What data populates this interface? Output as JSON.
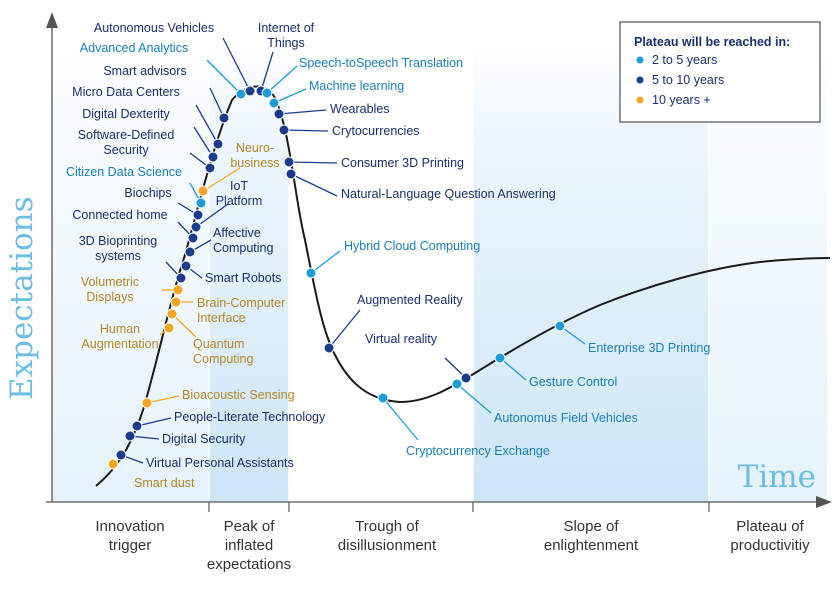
{
  "chart_data": {
    "type": "scatter",
    "title": "",
    "xlabel": "Time",
    "ylabel": "Expectations",
    "colors": {
      "2 to 5 years": "#1e9cd7",
      "5 to 10 years": "#1a3c8c",
      "10 years +": "#f5a623",
      "curve": "#1a1a1a",
      "axis_title": "#6bbde3"
    },
    "phases": [
      {
        "name": "Innovation trigger",
        "lines": [
          "Innovation",
          "trigger"
        ]
      },
      {
        "name": "Peak of inflated expectations",
        "lines": [
          "Peak of",
          "inflated",
          "expectations"
        ]
      },
      {
        "name": "Trough of disillusionment",
        "lines": [
          "Trough of",
          "disillusionment"
        ]
      },
      {
        "name": "Slope of enlightenment",
        "lines": [
          "Slope of",
          "enlightenment"
        ]
      },
      {
        "name": "Plateau of productivitiy",
        "lines": [
          "Plateau of",
          "productivitiy"
        ]
      }
    ],
    "legend": {
      "title": "Plateau will be reached in:",
      "position": "top-right",
      "entries": [
        {
          "label": "2 to 5 years",
          "category": "2 to 5 years"
        },
        {
          "label": "5 to 10 years",
          "category": "5 to 10 years"
        },
        {
          "label": "10 years +",
          "category": "10 years +"
        }
      ]
    },
    "points": [
      {
        "label": "Smart dust",
        "lines": [
          "Smart dust"
        ],
        "category": "10 years +"
      },
      {
        "label": "Virtual Personal Assistants",
        "lines": [
          "Virtual Personal Assistants"
        ],
        "category": "5 to 10 years"
      },
      {
        "label": "Digital Security",
        "lines": [
          "Digital Security"
        ],
        "category": "5 to 10 years"
      },
      {
        "label": "People-Literate Technology",
        "lines": [
          "People-Literate Technology"
        ],
        "category": "5 to 10 years"
      },
      {
        "label": "Bioacoustic Sensing",
        "lines": [
          "Bioacoustic Sensing"
        ],
        "category": "10 years +"
      },
      {
        "label": "Human Augmentation",
        "lines": [
          "Human",
          "Augmentation"
        ],
        "category": "10 years +"
      },
      {
        "label": "Quantum Computing",
        "lines": [
          "Quantum",
          "Computing"
        ],
        "category": "10 years +"
      },
      {
        "label": "Brain-Computer Interface",
        "lines": [
          "Brain-Computer",
          "Interface"
        ],
        "category": "10 years +"
      },
      {
        "label": "Volumetric Displays",
        "lines": [
          "Volumetric",
          "Displays"
        ],
        "category": "10 years +"
      },
      {
        "label": "3D Bioprinting systems",
        "lines": [
          "3D Bioprinting",
          "systems"
        ],
        "category": "5 to 10 years"
      },
      {
        "label": "Smart Robots",
        "lines": [
          "Smart Robots"
        ],
        "category": "5 to 10 years"
      },
      {
        "label": "Affective Computing",
        "lines": [
          "Affective",
          "Computing"
        ],
        "category": "5 to 10 years"
      },
      {
        "label": "Connected home",
        "lines": [
          "Connected home"
        ],
        "category": "5 to 10 years"
      },
      {
        "label": "IoT Platform",
        "lines": [
          "IoT",
          "Platform"
        ],
        "category": "5 to 10 years"
      },
      {
        "label": "Biochips",
        "lines": [
          "Biochips"
        ],
        "category": "5 to 10 years"
      },
      {
        "label": "Citizen Data Science",
        "lines": [
          "Citizen Data Science"
        ],
        "category": "2 to 5 years"
      },
      {
        "label": "Neuro-business",
        "lines": [
          "Neuro-",
          "business"
        ],
        "category": "10 years +"
      },
      {
        "label": "Software-Defined Security",
        "lines": [
          "Software-Defined",
          "Security"
        ],
        "category": "5 to 10 years"
      },
      {
        "label": "Digital Dexterity",
        "lines": [
          "Digital Dexterity"
        ],
        "category": "5 to 10 years"
      },
      {
        "label": "Micro Data Centers",
        "lines": [
          "Micro Data Centers"
        ],
        "category": "5 to 10 years"
      },
      {
        "label": "Smart advisors",
        "lines": [
          "Smart advisors"
        ],
        "category": "5 to 10 years"
      },
      {
        "label": "Advanced Analytics",
        "lines": [
          "Advanced Analytics"
        ],
        "category": "2 to 5 years"
      },
      {
        "label": "Autonomous Vehicles",
        "lines": [
          "Autonomous Vehicles"
        ],
        "category": "5 to 10 years"
      },
      {
        "label": "Internet of Things",
        "lines": [
          "Internet of",
          "Things"
        ],
        "category": "5 to 10 years"
      },
      {
        "label": "Speech-toSpeech Translation",
        "lines": [
          "Speech-toSpeech Translation"
        ],
        "category": "2 to 5 years"
      },
      {
        "label": "Machine learning",
        "lines": [
          "Machine learning"
        ],
        "category": "2 to 5 years"
      },
      {
        "label": "Wearables",
        "lines": [
          "Wearables"
        ],
        "category": "5 to 10 years"
      },
      {
        "label": "Crytocurrencies",
        "lines": [
          "Crytocurrencies"
        ],
        "category": "5 to 10 years"
      },
      {
        "label": "Consumer 3D Printing",
        "lines": [
          "Consumer 3D Printing"
        ],
        "category": "5 to 10 years"
      },
      {
        "label": "Natural-Language Question Answering",
        "lines": [
          "Natural-Language Question Answering"
        ],
        "category": "5 to 10 years"
      },
      {
        "label": "Hybrid Cloud Computing",
        "lines": [
          "Hybrid Cloud Computing"
        ],
        "category": "2 to 5 years"
      },
      {
        "label": "Augmented Reality",
        "lines": [
          "Augmented Reality"
        ],
        "category": "5 to 10 years"
      },
      {
        "label": "Virtual reality",
        "lines": [
          "Virtual reality"
        ],
        "category": "5 to 10 years"
      },
      {
        "label": "Cryptocurrency Exchange",
        "lines": [
          "Cryptocurrency Exchange"
        ],
        "category": "2 to 5 years"
      },
      {
        "label": "Autonomus Field Vehicles",
        "lines": [
          "Autonomus Field Vehicles"
        ],
        "category": "2 to 5 years"
      },
      {
        "label": "Gesture Control",
        "lines": [
          "Gesture Control"
        ],
        "category": "2 to 5 years"
      },
      {
        "label": "Enterprise 3D Printing",
        "lines": [
          "Enterprise 3D Printing"
        ],
        "category": "2 to 5 years"
      }
    ]
  }
}
